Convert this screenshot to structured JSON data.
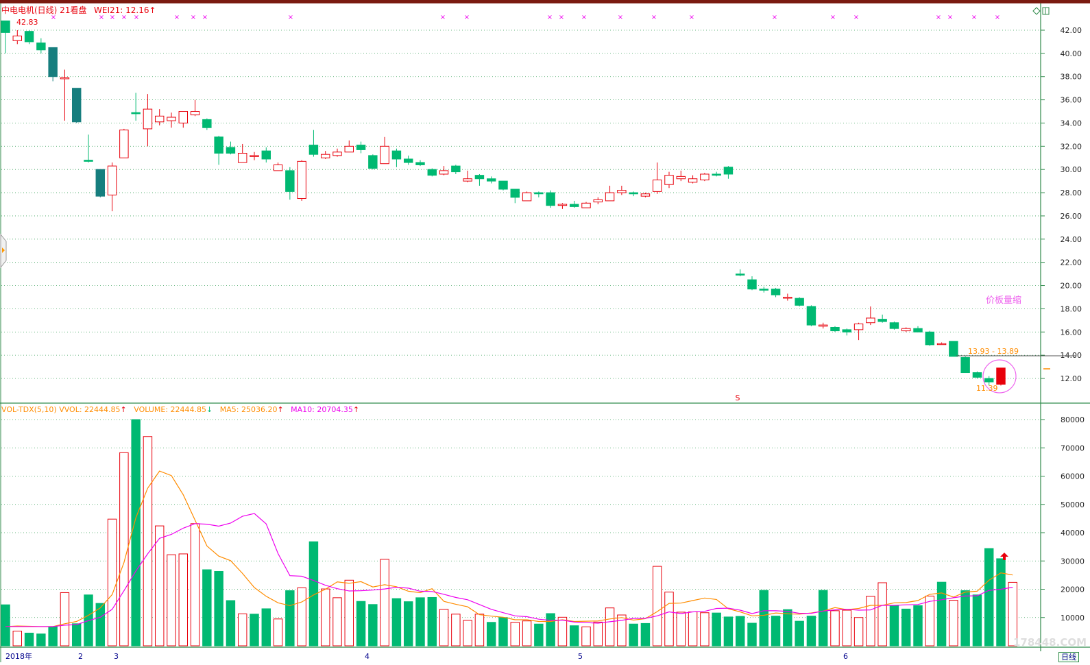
{
  "price_header": {
    "stock_label": "中电电机(日线) 21看盘",
    "wei_label": "WEI21: 12.16",
    "high_marker": "42.83",
    "low_marker": "11.39",
    "range_label": "13.93 - 13.89",
    "note": "价板量缩"
  },
  "volume_header": {
    "indicator": "VOL-TDX(5,10)",
    "vvol": "VVOL: 22444.85",
    "volume": "VOLUME: 22444.85",
    "ma5": "MA5: 25036.20",
    "ma10": "MA10: 20704.35"
  },
  "x_axis": {
    "year_label": "2018年",
    "months": [
      "2",
      "3",
      "4",
      "5",
      "6"
    ],
    "period_tab": "日线",
    "watermark": "178448.COM"
  },
  "colors": {
    "up": "#e8000b",
    "down": "#00b972",
    "down_dark": "#167e7e",
    "ma5": "#ff8c00",
    "ma10": "#ee00ee",
    "grid": "#3aa05a",
    "axis": "#2f8a4a"
  },
  "chart_data": [
    {
      "type": "candlestick",
      "title": "中电电机(日线)",
      "ylim": [
        10.5,
        43
      ],
      "y_ticks": [
        "42.00",
        "40.00",
        "38.00",
        "36.00",
        "34.00",
        "32.00",
        "30.00",
        "28.00",
        "26.00",
        "24.00",
        "22.00",
        "20.00",
        "18.00",
        "16.00",
        "14.00",
        "12.00"
      ],
      "candles": [
        {
          "o": 42.8,
          "h": 42.83,
          "l": 40.0,
          "c": 41.8
        },
        {
          "o": 41.1,
          "h": 42.0,
          "l": 40.8,
          "c": 41.5
        },
        {
          "o": 41.9,
          "h": 42.0,
          "l": 40.8,
          "c": 41.0
        },
        {
          "o": 40.9,
          "h": 41.3,
          "l": 40.0,
          "c": 40.3
        },
        {
          "o": 40.5,
          "h": 40.5,
          "l": 37.6,
          "c": 38.0
        },
        {
          "o": 37.9,
          "h": 38.6,
          "l": 34.2,
          "c": 37.9
        },
        {
          "o": 37.0,
          "h": 37.0,
          "l": 34.0,
          "c": 34.1
        },
        {
          "o": 30.8,
          "h": 33.0,
          "l": 30.6,
          "c": 30.7
        },
        {
          "o": 30.0,
          "h": 30.0,
          "l": 27.6,
          "c": 27.7
        },
        {
          "o": 27.8,
          "h": 30.6,
          "l": 26.4,
          "c": 30.3
        },
        {
          "o": 31.0,
          "h": 33.5,
          "l": 31.0,
          "c": 33.4
        },
        {
          "o": 34.9,
          "h": 36.6,
          "l": 34.2,
          "c": 34.8
        },
        {
          "o": 33.5,
          "h": 36.5,
          "l": 32.0,
          "c": 35.2
        },
        {
          "o": 34.1,
          "h": 35.2,
          "l": 33.8,
          "c": 34.6
        },
        {
          "o": 34.2,
          "h": 34.9,
          "l": 33.6,
          "c": 34.5
        },
        {
          "o": 34.0,
          "h": 35.0,
          "l": 33.6,
          "c": 35.0
        },
        {
          "o": 34.7,
          "h": 36.0,
          "l": 34.6,
          "c": 35.0
        },
        {
          "o": 34.3,
          "h": 34.4,
          "l": 33.4,
          "c": 33.6
        },
        {
          "o": 32.8,
          "h": 32.9,
          "l": 30.4,
          "c": 31.4
        },
        {
          "o": 31.9,
          "h": 32.4,
          "l": 31.3,
          "c": 31.4
        },
        {
          "o": 30.6,
          "h": 32.2,
          "l": 30.6,
          "c": 31.4
        },
        {
          "o": 31.2,
          "h": 31.5,
          "l": 30.8,
          "c": 31.2
        },
        {
          "o": 31.6,
          "h": 31.9,
          "l": 30.6,
          "c": 30.9
        },
        {
          "o": 29.9,
          "h": 30.6,
          "l": 29.9,
          "c": 30.4
        },
        {
          "o": 29.9,
          "h": 30.2,
          "l": 27.4,
          "c": 28.1
        },
        {
          "o": 27.5,
          "h": 30.8,
          "l": 27.3,
          "c": 30.7
        },
        {
          "o": 32.1,
          "h": 33.4,
          "l": 31.1,
          "c": 31.3
        },
        {
          "o": 31.0,
          "h": 31.6,
          "l": 30.9,
          "c": 31.3
        },
        {
          "o": 31.2,
          "h": 31.8,
          "l": 31.1,
          "c": 31.5
        },
        {
          "o": 31.5,
          "h": 32.5,
          "l": 31.5,
          "c": 32.0
        },
        {
          "o": 32.1,
          "h": 32.4,
          "l": 31.4,
          "c": 31.7
        },
        {
          "o": 31.2,
          "h": 31.3,
          "l": 30.0,
          "c": 30.1
        },
        {
          "o": 30.5,
          "h": 32.8,
          "l": 30.5,
          "c": 32.0
        },
        {
          "o": 31.6,
          "h": 31.8,
          "l": 30.2,
          "c": 30.9
        },
        {
          "o": 30.9,
          "h": 31.2,
          "l": 30.4,
          "c": 30.6
        },
        {
          "o": 30.6,
          "h": 30.8,
          "l": 30.3,
          "c": 30.4
        },
        {
          "o": 30.0,
          "h": 30.1,
          "l": 29.4,
          "c": 29.5
        },
        {
          "o": 29.6,
          "h": 30.3,
          "l": 29.5,
          "c": 29.9
        },
        {
          "o": 30.3,
          "h": 30.4,
          "l": 29.6,
          "c": 29.8
        },
        {
          "o": 29.0,
          "h": 29.9,
          "l": 28.9,
          "c": 29.2
        },
        {
          "o": 29.5,
          "h": 29.6,
          "l": 28.6,
          "c": 29.2
        },
        {
          "o": 29.2,
          "h": 29.4,
          "l": 28.8,
          "c": 29.0
        },
        {
          "o": 29.0,
          "h": 29.0,
          "l": 28.2,
          "c": 28.3
        },
        {
          "o": 28.3,
          "h": 28.3,
          "l": 27.1,
          "c": 27.6
        },
        {
          "o": 27.3,
          "h": 28.1,
          "l": 27.3,
          "c": 28.0
        },
        {
          "o": 28.0,
          "h": 28.1,
          "l": 27.6,
          "c": 27.9
        },
        {
          "o": 28.0,
          "h": 28.2,
          "l": 26.7,
          "c": 26.9
        },
        {
          "o": 26.9,
          "h": 27.1,
          "l": 26.6,
          "c": 27.0
        },
        {
          "o": 27.0,
          "h": 27.3,
          "l": 26.7,
          "c": 26.8
        },
        {
          "o": 26.7,
          "h": 27.2,
          "l": 26.7,
          "c": 27.1
        },
        {
          "o": 27.2,
          "h": 27.6,
          "l": 27.0,
          "c": 27.4
        },
        {
          "o": 27.3,
          "h": 28.6,
          "l": 27.3,
          "c": 28.0
        },
        {
          "o": 28.0,
          "h": 28.6,
          "l": 27.8,
          "c": 28.2
        },
        {
          "o": 28.0,
          "h": 28.1,
          "l": 27.7,
          "c": 27.9
        },
        {
          "o": 27.7,
          "h": 28.0,
          "l": 27.6,
          "c": 27.9
        },
        {
          "o": 28.1,
          "h": 30.6,
          "l": 27.9,
          "c": 29.1
        },
        {
          "o": 28.7,
          "h": 29.8,
          "l": 28.4,
          "c": 29.5
        },
        {
          "o": 29.2,
          "h": 29.9,
          "l": 29.0,
          "c": 29.4
        },
        {
          "o": 28.9,
          "h": 29.5,
          "l": 28.8,
          "c": 29.2
        },
        {
          "o": 29.1,
          "h": 29.7,
          "l": 29.0,
          "c": 29.6
        },
        {
          "o": 29.6,
          "h": 29.8,
          "l": 29.4,
          "c": 29.5
        },
        {
          "o": 30.2,
          "h": 30.3,
          "l": 29.2,
          "c": 29.6
        },
        {
          "o": 21.0,
          "h": 21.4,
          "l": 20.8,
          "c": 20.9
        },
        {
          "o": 20.5,
          "h": 20.8,
          "l": 19.6,
          "c": 19.7
        },
        {
          "o": 19.7,
          "h": 19.9,
          "l": 19.4,
          "c": 19.6
        },
        {
          "o": 19.7,
          "h": 19.8,
          "l": 19.0,
          "c": 19.2
        },
        {
          "o": 19.0,
          "h": 19.3,
          "l": 18.7,
          "c": 19.0
        },
        {
          "o": 18.9,
          "h": 19.0,
          "l": 18.2,
          "c": 18.3
        },
        {
          "o": 18.2,
          "h": 18.3,
          "l": 16.5,
          "c": 16.6
        },
        {
          "o": 16.5,
          "h": 16.8,
          "l": 16.3,
          "c": 16.6
        },
        {
          "o": 16.4,
          "h": 16.5,
          "l": 16.0,
          "c": 16.1
        },
        {
          "o": 16.2,
          "h": 16.3,
          "l": 15.7,
          "c": 16.0
        },
        {
          "o": 16.2,
          "h": 16.8,
          "l": 15.3,
          "c": 16.7
        },
        {
          "o": 16.8,
          "h": 18.2,
          "l": 16.6,
          "c": 17.2
        },
        {
          "o": 17.1,
          "h": 17.5,
          "l": 16.8,
          "c": 16.9
        },
        {
          "o": 16.8,
          "h": 16.9,
          "l": 16.2,
          "c": 16.3
        },
        {
          "o": 16.1,
          "h": 16.4,
          "l": 16.0,
          "c": 16.3
        },
        {
          "o": 16.3,
          "h": 16.5,
          "l": 16.0,
          "c": 16.0
        },
        {
          "o": 16.0,
          "h": 16.1,
          "l": 14.8,
          "c": 14.9
        },
        {
          "o": 15.0,
          "h": 15.1,
          "l": 14.9,
          "c": 15.0
        },
        {
          "o": 15.2,
          "h": 15.2,
          "l": 13.9,
          "c": 13.9
        },
        {
          "o": 13.8,
          "h": 13.9,
          "l": 12.5,
          "c": 12.5
        },
        {
          "o": 12.5,
          "h": 12.6,
          "l": 12.0,
          "c": 12.1
        },
        {
          "o": 12.0,
          "h": 12.2,
          "l": 11.4,
          "c": 11.7
        },
        {
          "o": 11.5,
          "h": 12.9,
          "l": 11.39,
          "c": 12.9
        }
      ]
    },
    {
      "type": "bar",
      "title": "VOL-TDX(5,10)",
      "ylim": [
        0,
        82000
      ],
      "y_ticks": [
        "80000",
        "70000",
        "60000",
        "50000",
        "40000",
        "30000",
        "20000",
        "10000"
      ],
      "volume": [
        14500,
        5200,
        4500,
        4200,
        6800,
        18800,
        7800,
        18000,
        15000,
        44800,
        68300,
        80000,
        74000,
        42400,
        32200,
        32500,
        43200,
        26900,
        26300,
        16000,
        11300,
        11200,
        13100,
        9500,
        19500,
        20500,
        36800,
        20100,
        17000,
        23200,
        15700,
        14600,
        30600,
        16700,
        15600,
        17000,
        17100,
        12900,
        11200,
        9000,
        11200,
        8300,
        10000,
        8300,
        8800,
        7700,
        11400,
        10100,
        7100,
        6700,
        8400,
        13400,
        10900,
        7700,
        7900,
        28100,
        19000,
        11900,
        12000,
        11700,
        11600,
        10200,
        10400,
        8000,
        19600,
        10500,
        12800,
        8700,
        10500,
        19600,
        12400,
        12600,
        10000,
        17500,
        22300,
        14200,
        13000,
        14200,
        17600,
        22500,
        16100,
        19500,
        18000,
        34400,
        30800,
        22444.85
      ],
      "up": [
        false,
        true,
        false,
        false,
        false,
        true,
        false,
        false,
        false,
        true,
        true,
        false,
        true,
        true,
        true,
        true,
        true,
        false,
        false,
        false,
        true,
        false,
        false,
        true,
        false,
        true,
        false,
        true,
        true,
        true,
        false,
        false,
        true,
        false,
        false,
        false,
        false,
        true,
        true,
        true,
        true,
        false,
        false,
        true,
        true,
        false,
        false,
        true,
        false,
        true,
        true,
        true,
        true,
        false,
        false,
        true,
        true,
        true,
        true,
        true,
        false,
        false,
        false,
        false,
        false,
        false,
        false,
        false,
        false,
        false,
        true,
        true,
        true,
        true,
        true,
        false,
        false,
        false,
        true,
        false,
        true,
        false,
        false,
        false,
        false,
        true
      ],
      "series": [
        {
          "name": "MA5",
          "values": [
            6800,
            7000,
            6900,
            6800,
            6800,
            7800,
            8600,
            10800,
            13400,
            18100,
            29500,
            45200,
            55700,
            61800,
            60200,
            53400,
            44400,
            35300,
            31700,
            30100,
            25600,
            20600,
            17500,
            15200,
            14200,
            15500,
            18000,
            20000,
            22600,
            22100,
            22700,
            20800,
            21600,
            20900,
            19300,
            18800,
            20200,
            15700,
            14700,
            13800,
            11000,
            10500,
            10100,
            9200,
            9200,
            8600,
            8600,
            9200,
            8600,
            8700,
            8800,
            9500,
            10000,
            9100,
            9600,
            12100,
            15000,
            15100,
            16000,
            16900,
            16400,
            13100,
            12000,
            10600,
            10800,
            11600,
            11300,
            11200,
            11600,
            12300,
            13500,
            12800,
            13200,
            14300,
            14300,
            15200,
            15300,
            16000,
            18200,
            18700,
            17200,
            19000,
            19300,
            23200,
            25800,
            25036.2
          ]
        },
        {
          "name": "MA10",
          "values": [
            6800,
            6800,
            6800,
            6800,
            6800,
            7300,
            7500,
            8900,
            10100,
            12900,
            19500,
            26400,
            32500,
            38000,
            39400,
            41600,
            43200,
            43000,
            42300,
            43400,
            45800,
            46800,
            43100,
            32600,
            24800,
            24600,
            23100,
            21400,
            20200,
            19400,
            19500,
            19700,
            20100,
            20700,
            20400,
            19300,
            19200,
            18200,
            17100,
            16300,
            14600,
            12900,
            11700,
            10600,
            10300,
            9400,
            9000,
            9100,
            8400,
            8200,
            8000,
            8500,
            9000,
            9700,
            9700,
            10600,
            12000,
            11400,
            12000,
            12200,
            13200,
            13300,
            12600,
            11400,
            12400,
            12400,
            12200,
            11500,
            11500,
            12300,
            12700,
            12900,
            12600,
            12700,
            14300,
            14300,
            14500,
            14600,
            15700,
            16300,
            17000,
            17600,
            17700,
            19600,
            20000,
            20704.35
          ]
        }
      ]
    }
  ]
}
